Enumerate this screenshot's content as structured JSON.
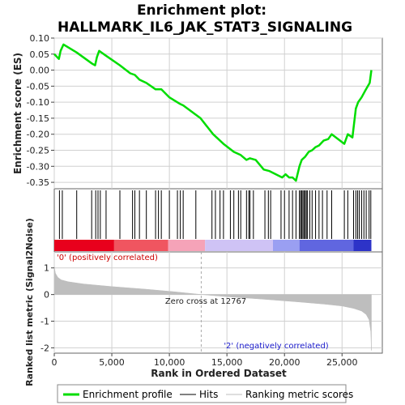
{
  "chart_data": [
    {
      "type": "line",
      "title": "Enrichment plot:",
      "subtitle": "HALLMARK_IL6_JAK_STAT3_SIGNALING",
      "ylabel": "Enrichment score (ES)",
      "ylim": [
        -0.37,
        0.1
      ],
      "yticks": [
        0.1,
        0.05,
        0.0,
        -0.05,
        -0.1,
        -0.15,
        -0.2,
        -0.25,
        -0.3,
        -0.35
      ],
      "xlim": [
        0,
        28500
      ],
      "grid": true,
      "series": [
        {
          "name": "Enrichment profile",
          "color": "#00dd00",
          "x": [
            0,
            400,
            550,
            800,
            1950,
            3300,
            3550,
            3700,
            3900,
            4500,
            5700,
            6600,
            7000,
            7400,
            8000,
            8800,
            9300,
            10000,
            10900,
            11200,
            12700,
            13800,
            14700,
            15600,
            16200,
            16700,
            17000,
            17500,
            18200,
            18700,
            19800,
            20100,
            20400,
            20700,
            21000,
            21300,
            21500,
            21800,
            22100,
            22400,
            22700,
            23000,
            23400,
            23800,
            24100,
            25200,
            25500,
            25900,
            26200,
            26400,
            26700,
            27000,
            27400,
            27550
          ],
          "y": [
            0.05,
            0.035,
            0.06,
            0.08,
            0.055,
            0.02,
            0.015,
            0.04,
            0.06,
            0.045,
            0.015,
            -0.01,
            -0.015,
            -0.03,
            -0.04,
            -0.06,
            -0.06,
            -0.085,
            -0.105,
            -0.11,
            -0.15,
            -0.2,
            -0.23,
            -0.255,
            -0.265,
            -0.28,
            -0.275,
            -0.28,
            -0.31,
            -0.315,
            -0.335,
            -0.325,
            -0.335,
            -0.335,
            -0.345,
            -0.3,
            -0.28,
            -0.27,
            -0.255,
            -0.25,
            -0.24,
            -0.235,
            -0.22,
            -0.215,
            -0.2,
            -0.23,
            -0.2,
            -0.21,
            -0.12,
            -0.1,
            -0.085,
            -0.065,
            -0.04,
            0.0
          ]
        }
      ]
    },
    {
      "type": "scatter",
      "name": "Hits",
      "xlim": [
        0,
        28500
      ],
      "hits_x": [
        450,
        700,
        1950,
        3250,
        3600,
        3800,
        4000,
        4500,
        5700,
        6800,
        7000,
        7400,
        8000,
        8800,
        9050,
        9300,
        10000,
        10700,
        10950,
        11200,
        12300,
        13700,
        14000,
        14400,
        14700,
        15300,
        15600,
        16000,
        16200,
        16700,
        16900,
        17000,
        17300,
        18300,
        18600,
        18800,
        19700,
        20000,
        20400,
        20700,
        21000,
        21300,
        21400,
        21500,
        21600,
        21700,
        21800,
        21900,
        22000,
        22200,
        22400,
        22700,
        23000,
        23300,
        23700,
        24100,
        25200,
        25500,
        26000,
        26200,
        26350,
        26500,
        26700,
        26900,
        27100,
        27350,
        27500
      ]
    },
    {
      "type": "heatmap",
      "name": "Rank colour bar",
      "colors": [
        "#e8001c",
        "#f05560",
        "#f5a3b8",
        "#f0c8f0",
        "#cfc3f5",
        "#9a9ff2",
        "#2d33c8"
      ],
      "segments": [
        {
          "from": 0,
          "to": 5200,
          "color": "#e8001c"
        },
        {
          "from": 5200,
          "to": 9900,
          "color": "#f05560"
        },
        {
          "from": 9900,
          "to": 13100,
          "color": "#f5a3b8"
        },
        {
          "from": 13100,
          "to": 19000,
          "color": "#cfc3f5"
        },
        {
          "from": 19000,
          "to": 21300,
          "color": "#9a9ff2"
        },
        {
          "from": 21300,
          "to": 26000,
          "color": "#6066e0"
        },
        {
          "from": 26000,
          "to": 27550,
          "color": "#2d33c8"
        }
      ]
    },
    {
      "type": "area",
      "ylabel": "Ranked list metric (Signal2Noise)",
      "xlabel": "Rank in Ordered Dataset",
      "ylim": [
        -2.2,
        1.6
      ],
      "yticks": [
        1,
        0,
        -1,
        -2
      ],
      "xlim": [
        0,
        28500
      ],
      "xticks": [
        0,
        5000,
        10000,
        15000,
        20000,
        25000
      ],
      "xtick_labels": [
        "0",
        "5,000",
        "10,000",
        "15,000",
        "20,000",
        "25,000"
      ],
      "series": [
        {
          "name": "Ranking metric scores",
          "color": "#bebebe",
          "x": [
            0,
            100,
            300,
            600,
            1200,
            2500,
            5000,
            8000,
            10500,
            12767,
            15000,
            18000,
            21000,
            23500,
            25000,
            26000,
            26700,
            27100,
            27350,
            27500,
            27550
          ],
          "y": [
            1.05,
            0.8,
            0.65,
            0.55,
            0.48,
            0.4,
            0.3,
            0.2,
            0.1,
            0.0,
            -0.08,
            -0.17,
            -0.27,
            -0.36,
            -0.43,
            -0.52,
            -0.62,
            -0.75,
            -0.95,
            -1.4,
            -2.1
          ]
        }
      ],
      "annotations": {
        "zero_cross_label": "Zero cross at 12767",
        "zero_cross_x": 12767,
        "pos_label": "'0' (positively correlated)",
        "neg_label": "'2' (negatively correlated)"
      }
    }
  ],
  "legend": {
    "placement": "bottom",
    "items": [
      {
        "label": "Enrichment profile",
        "color": "#00dd00",
        "kind": "thick-line"
      },
      {
        "label": "Hits",
        "color": "#000000",
        "kind": "line"
      },
      {
        "label": "Ranking metric scores",
        "color": "#bebebe",
        "kind": "line"
      }
    ]
  },
  "colors": {
    "profile": "#00dd00",
    "grid": "#d0d0d0",
    "zero_line": "#aaaaaa",
    "pos_label": "#cc0000",
    "neg_label": "#1a1acc"
  }
}
